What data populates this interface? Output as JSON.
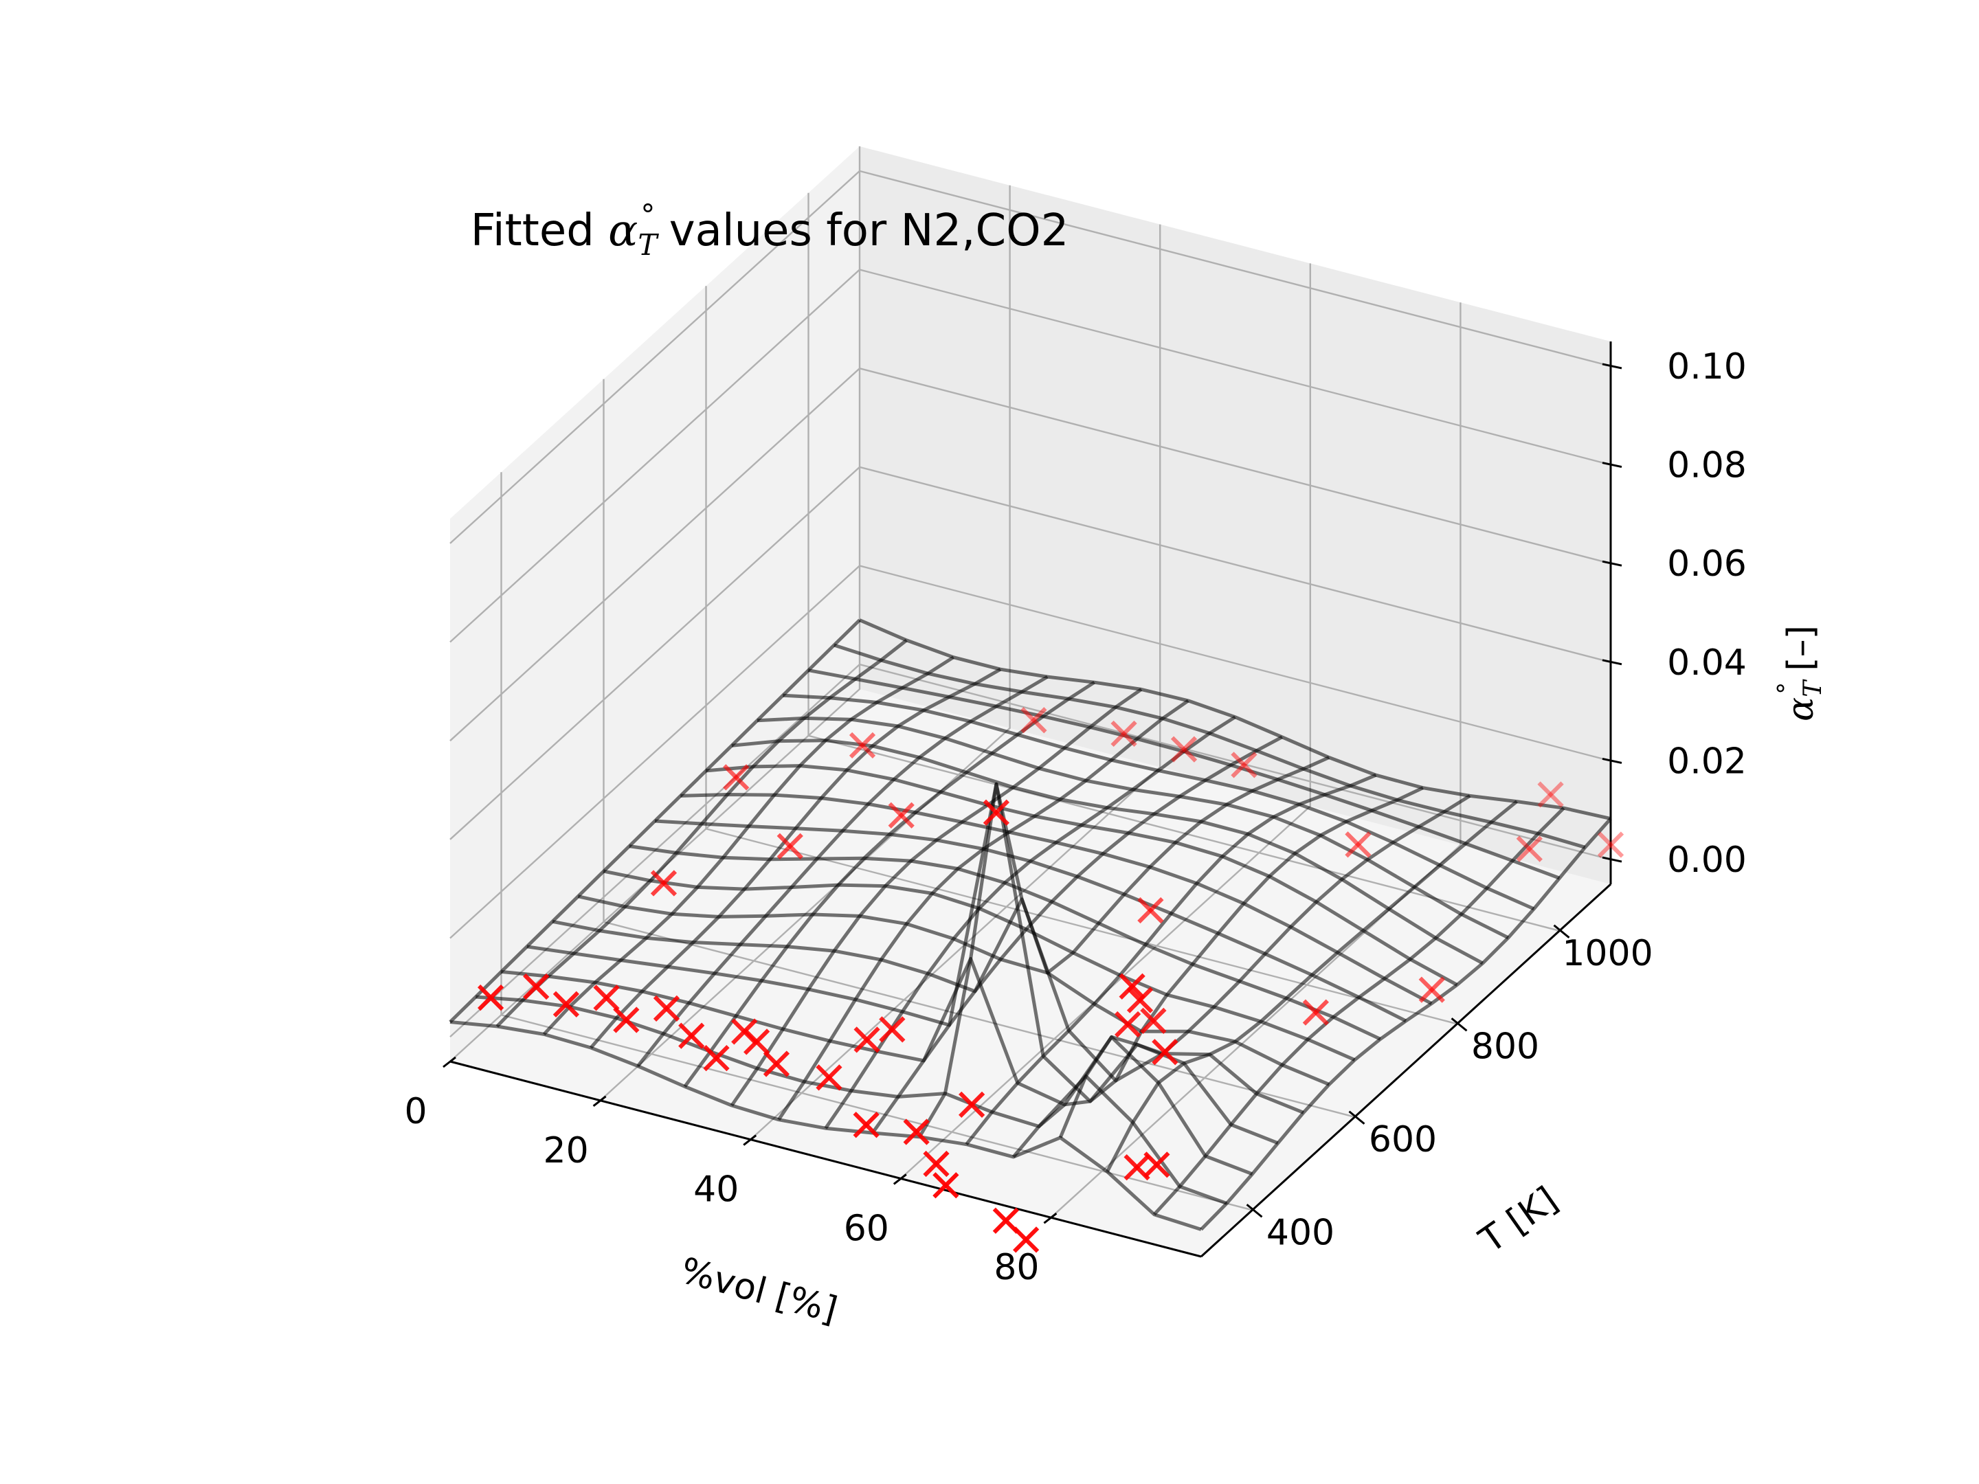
{
  "chart_data": {
    "type": "surface3d",
    "title": {
      "prefix": "Fitted ",
      "symbol": "α",
      "subscript": "T",
      "superscript": "°",
      "suffix": " values for N2,CO2"
    },
    "xlabel": "%vol [%]",
    "ylabel": "T [K]",
    "zlabel": {
      "symbol": "α",
      "subscript": "T",
      "superscript": "°",
      "unit": "[–]"
    },
    "xlim": [
      0,
      100
    ],
    "ylim": [
      300,
      1100
    ],
    "zlim": [
      0,
      0.1
    ],
    "x_ticks": [
      "0",
      "20",
      "40",
      "60",
      "80"
    ],
    "y_ticks": [
      "400",
      "600",
      "800",
      "1000"
    ],
    "z_ticks": [
      "0.00",
      "0.02",
      "0.04",
      "0.06",
      "0.08",
      "0.10"
    ],
    "grid": true,
    "colors": {
      "surface": "#000000",
      "markers": "#ff0000",
      "pane_left": "#f2f2f2",
      "pane_back": "#ebebeb",
      "pane_floor": "#f5f5f5",
      "grid": "#b0b0b0"
    },
    "surface": {
      "x": [
        0,
        6.25,
        12.5,
        18.75,
        25,
        31.25,
        37.5,
        43.75,
        50,
        56.25,
        62.5,
        68.75,
        75,
        81.25,
        87.5,
        93.75,
        100
      ],
      "y": [
        300,
        350,
        400,
        450,
        500,
        550,
        600,
        650,
        700,
        750,
        800,
        850,
        900,
        950,
        1000,
        1050,
        1100
      ],
      "peaks": [
        {
          "x": 62.5,
          "y": 450,
          "amplitude": 0.052,
          "sx": 2.5,
          "sy": 55
        },
        {
          "x": 84,
          "y": 400,
          "amplitude": 0.036,
          "sx": 3.2,
          "sy": 110
        },
        {
          "x": 78,
          "y": 480,
          "amplitude": -0.02,
          "sx": 3,
          "sy": 60
        }
      ]
    },
    "points": [
      {
        "x": 2,
        "y": 350,
        "z": 0.004
      },
      {
        "x": 6,
        "y": 380,
        "z": 0.005
      },
      {
        "x": 10,
        "y": 380,
        "z": 0.003
      },
      {
        "x": 14,
        "y": 400,
        "z": 0.004
      },
      {
        "x": 18,
        "y": 380,
        "z": 0.003
      },
      {
        "x": 22,
        "y": 400,
        "z": 0.005
      },
      {
        "x": 26,
        "y": 390,
        "z": 0.002
      },
      {
        "x": 30,
        "y": 380,
        "z": 0.0
      },
      {
        "x": 31,
        "y": 420,
        "z": 0.002
      },
      {
        "x": 34,
        "y": 400,
        "z": 0.003
      },
      {
        "x": 38,
        "y": 380,
        "z": 0.002
      },
      {
        "x": 45,
        "y": 380,
        "z": 0.002
      },
      {
        "x": 48,
        "y": 410,
        "z": 0.008
      },
      {
        "x": 50,
        "y": 430,
        "z": 0.009
      },
      {
        "x": 52,
        "y": 350,
        "z": -0.002
      },
      {
        "x": 58,
        "y": 360,
        "z": -0.002
      },
      {
        "x": 62,
        "y": 340,
        "z": -0.005
      },
      {
        "x": 64,
        "y": 380,
        "z": 0.004
      },
      {
        "x": 66,
        "y": 300,
        "z": -0.004
      },
      {
        "x": 62.5,
        "y": 450,
        "z": 0.056
      },
      {
        "x": 74,
        "y": 300,
        "z": -0.008
      },
      {
        "x": 76,
        "y": 310,
        "z": -0.012
      },
      {
        "x": 84,
        "y": 400,
        "z": 0.034
      },
      {
        "x": 83,
        "y": 430,
        "z": 0.028
      },
      {
        "x": 80,
        "y": 450,
        "z": 0.02
      },
      {
        "x": 80,
        "y": 500,
        "z": 0.016
      },
      {
        "x": 87,
        "y": 420,
        "z": 0.02
      },
      {
        "x": 86,
        "y": 380,
        "z": 0.0
      },
      {
        "x": 90,
        "y": 360,
        "z": 0.004
      },
      {
        "x": 98,
        "y": 780,
        "z": 0.003
      },
      {
        "x": 66,
        "y": 700,
        "z": 0.014
      },
      {
        "x": 8,
        "y": 600,
        "z": 0.006
      },
      {
        "x": 18,
        "y": 700,
        "z": 0.008
      },
      {
        "x": 4,
        "y": 800,
        "z": 0.007
      },
      {
        "x": 14,
        "y": 900,
        "z": 0.008
      },
      {
        "x": 26,
        "y": 800,
        "z": 0.008
      },
      {
        "x": 30,
        "y": 1000,
        "z": 0.01
      },
      {
        "x": 42,
        "y": 1000,
        "z": 0.012
      },
      {
        "x": 50,
        "y": 1000,
        "z": 0.012
      },
      {
        "x": 58,
        "y": 1000,
        "z": 0.012
      },
      {
        "x": 80,
        "y": 900,
        "z": 0.014
      },
      {
        "x": 96,
        "y": 1000,
        "z": 0.01
      },
      {
        "x": 100,
        "y": 1100,
        "z": 0.003
      },
      {
        "x": 92,
        "y": 1100,
        "z": 0.01
      },
      {
        "x": 88,
        "y": 700,
        "z": 0.002
      }
    ]
  }
}
